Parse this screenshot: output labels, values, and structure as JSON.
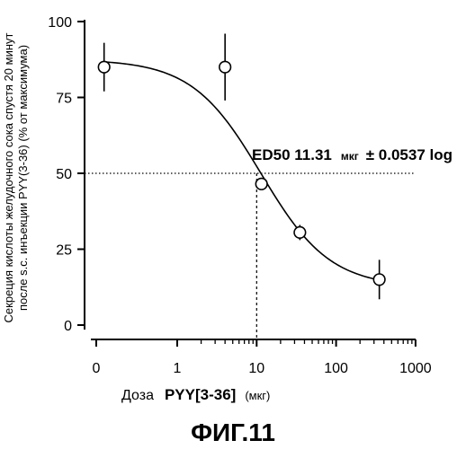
{
  "chart_data": {
    "type": "scatter",
    "figure_title": "ФИГ.11",
    "ylabel_line1": "Секреция кислоты желудочного сока спустя 20 минут",
    "ylabel_line2": "после s.c. инъекции PYY(3-36) (% от максимума)",
    "xlabel": {
      "prefix": "Доза",
      "compound": "PYY[3-36]",
      "unit": "(мкг)"
    },
    "x_scale": "log",
    "x_ticks": [
      "0",
      "1",
      "10",
      "100",
      "1000"
    ],
    "y_ticks": [
      "0",
      "25",
      "50",
      "75",
      "100"
    ],
    "ylim": [
      0,
      100
    ],
    "xlim": [
      0,
      1000
    ],
    "series": [
      {
        "points": [
          {
            "x": 0.12,
            "y": 85,
            "err": 8
          },
          {
            "x": 4,
            "y": 85,
            "err": 11
          },
          {
            "x": 11.5,
            "y": 46.5,
            "err": 0
          },
          {
            "x": 35,
            "y": 30.5,
            "err": 2.5
          },
          {
            "x": 350,
            "y": 15,
            "err": 6.5
          }
        ]
      }
    ],
    "fit_curve": {
      "top": 87.5,
      "bottom": 12.5,
      "ed50": 11.31,
      "hill": 1
    },
    "reference_lines": {
      "y": 50,
      "x": 10
    },
    "annotation": {
      "lead": "ED50 11.31",
      "unit": "мкг",
      "tail": "± 0.0537 log"
    }
  }
}
